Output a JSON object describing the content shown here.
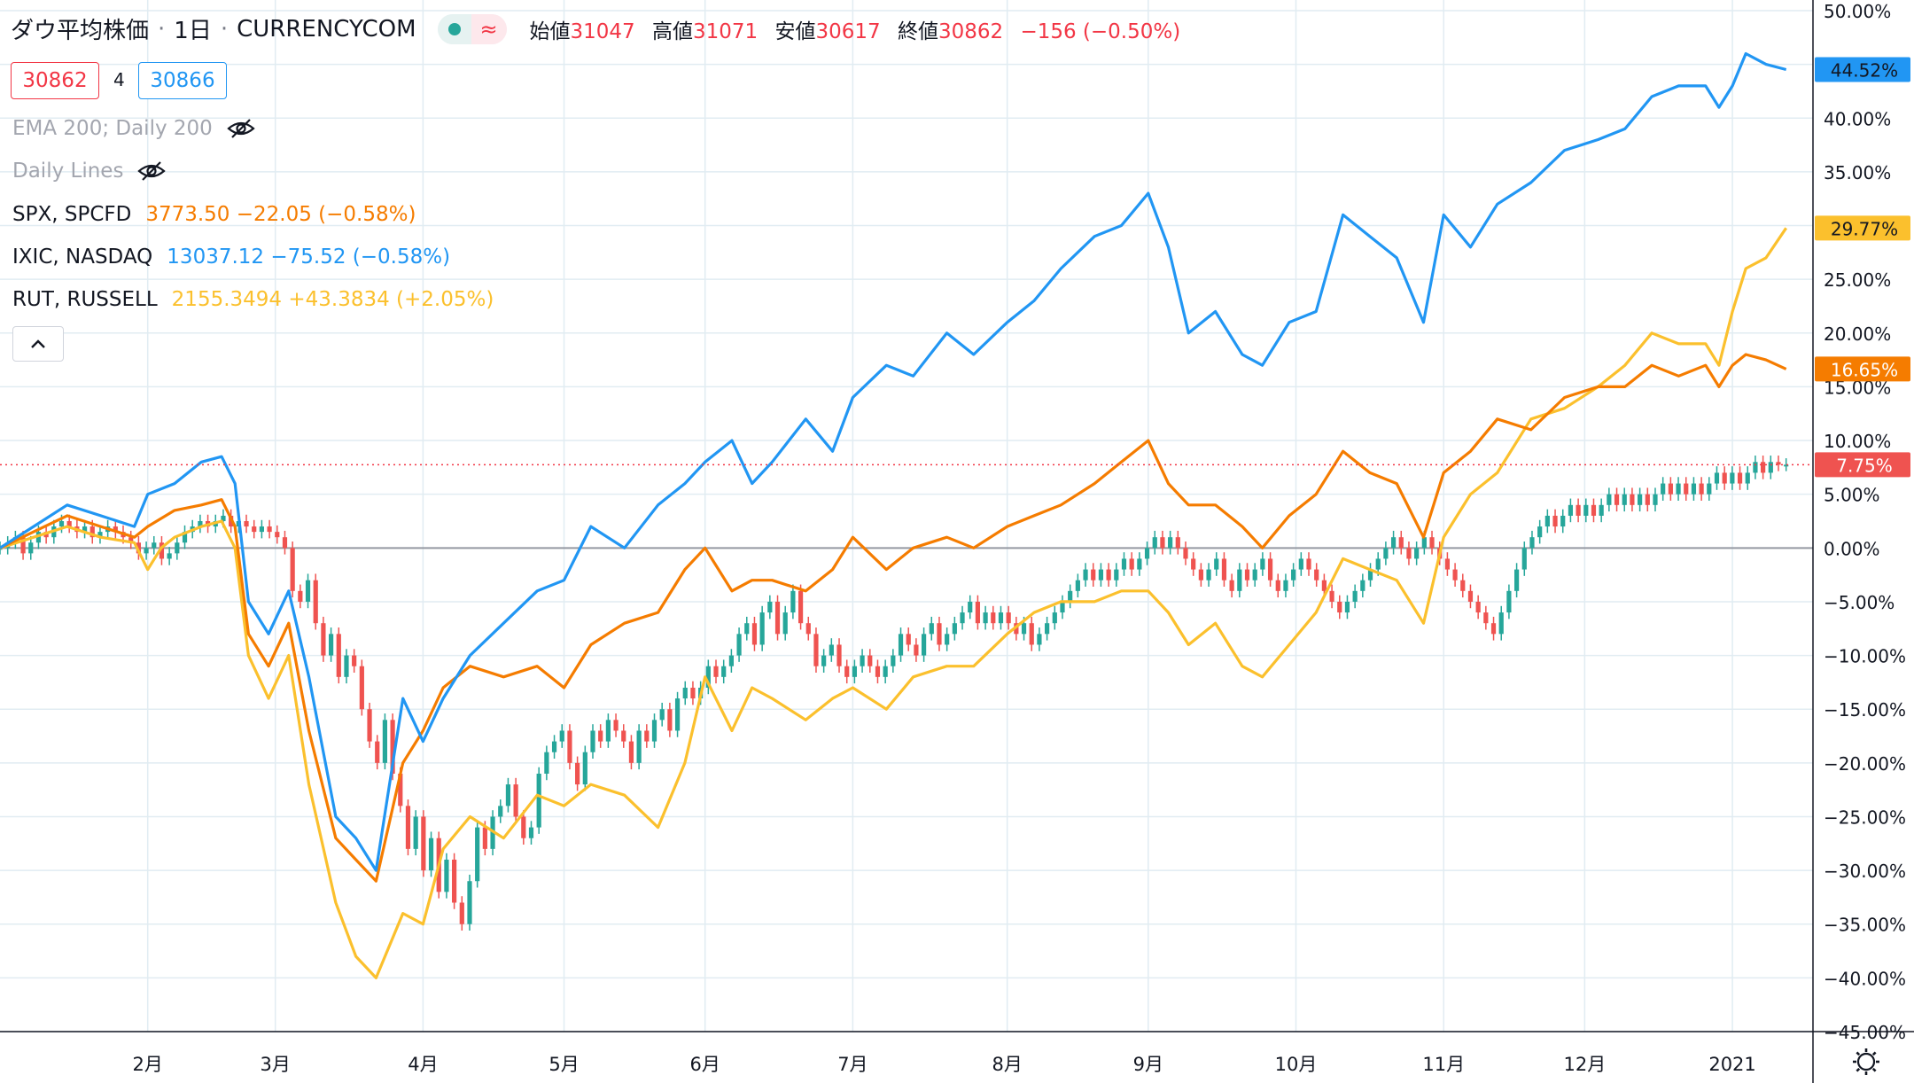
{
  "header": {
    "symbol_name": "ダウ平均株価",
    "interval": "1日",
    "source": "CURRENCYCOM",
    "pill_icon_left": "green-dot-icon",
    "pill_icon_right": "approx-icon",
    "ohlc": {
      "open_label": "始値",
      "open": "31047",
      "high_label": "高値",
      "high": "31071",
      "low_label": "安値",
      "low": "30617",
      "close_label": "終値",
      "close": "30862",
      "change": "−156 (−0.50%)"
    },
    "bid": "30862",
    "spread": "4",
    "ask": "30866"
  },
  "legend": {
    "ema": "EMA 200; Daily 200",
    "daily_lines": "Daily Lines",
    "spx": {
      "name": "SPX, SPCFD",
      "value": "3773.50 −22.05 (−0.58%)",
      "color": "#f57c00"
    },
    "ixic": {
      "name": "IXIC, NASDAQ",
      "value": "13037.12 −75.52 (−0.58%)",
      "color": "#2196f3"
    },
    "rut": {
      "name": "RUT, RUSSELL",
      "value": "2155.3494 +43.3834 (+2.05%)",
      "color": "#fbc02d"
    }
  },
  "colors": {
    "up": "#26a69a",
    "down": "#ef5350",
    "grid": "#e1ecf2",
    "zero_line": "#9598a1",
    "axis_text": "#131722",
    "price_line": "#f23645",
    "label_text_dark": "#131722"
  },
  "chart_data": {
    "type": "line",
    "ylim": [
      -45,
      50
    ],
    "y_ticks": [
      "50.00%",
      "45.00%",
      "40.00%",
      "35.00%",
      "30.00%",
      "25.00%",
      "20.00%",
      "15.00%",
      "10.00%",
      "5.00%",
      "0.00%",
      "−5.00%",
      "−10.00%",
      "−15.00%",
      "−20.00%",
      "−25.00%",
      "−30.00%",
      "−35.00%",
      "−40.00%",
      "−45.00%"
    ],
    "y_tick_values": [
      50,
      45,
      40,
      35,
      30,
      25,
      20,
      15,
      10,
      5,
      0,
      -5,
      -10,
      -15,
      -20,
      -25,
      -30,
      -35,
      -40,
      -45
    ],
    "x_ticks": [
      {
        "label": "2月",
        "t": 22
      },
      {
        "label": "3月",
        "t": 41
      },
      {
        "label": "4月",
        "t": 63
      },
      {
        "label": "5月",
        "t": 84
      },
      {
        "label": "6月",
        "t": 105
      },
      {
        "label": "7月",
        "t": 127
      },
      {
        "label": "8月",
        "t": 150
      },
      {
        "label": "9月",
        "t": 171
      },
      {
        "label": "10月",
        "t": 193
      },
      {
        "label": "11月",
        "t": 215
      },
      {
        "label": "12月",
        "t": 236
      },
      {
        "label": "2021",
        "t": 258
      }
    ],
    "t_range": [
      0,
      270
    ],
    "series": [
      {
        "name": "IXIC, NASDAQ",
        "color": "#2196f3",
        "last_label": "44.52%",
        "points": [
          [
            0,
            0
          ],
          [
            5,
            2
          ],
          [
            10,
            4
          ],
          [
            15,
            3
          ],
          [
            20,
            2
          ],
          [
            22,
            5
          ],
          [
            26,
            6
          ],
          [
            30,
            8
          ],
          [
            33,
            8.5
          ],
          [
            35,
            6
          ],
          [
            37,
            -5
          ],
          [
            40,
            -8
          ],
          [
            43,
            -4
          ],
          [
            46,
            -12
          ],
          [
            50,
            -25
          ],
          [
            53,
            -27
          ],
          [
            56,
            -30
          ],
          [
            60,
            -14
          ],
          [
            63,
            -18
          ],
          [
            66,
            -14
          ],
          [
            70,
            -10
          ],
          [
            75,
            -7
          ],
          [
            80,
            -4
          ],
          [
            84,
            -3
          ],
          [
            88,
            2
          ],
          [
            93,
            0
          ],
          [
            98,
            4
          ],
          [
            102,
            6
          ],
          [
            105,
            8
          ],
          [
            109,
            10
          ],
          [
            112,
            6
          ],
          [
            115,
            8
          ],
          [
            120,
            12
          ],
          [
            124,
            9
          ],
          [
            127,
            14
          ],
          [
            132,
            17
          ],
          [
            136,
            16
          ],
          [
            141,
            20
          ],
          [
            145,
            18
          ],
          [
            150,
            21
          ],
          [
            154,
            23
          ],
          [
            158,
            26
          ],
          [
            163,
            29
          ],
          [
            167,
            30
          ],
          [
            171,
            33
          ],
          [
            174,
            28
          ],
          [
            177,
            20
          ],
          [
            181,
            22
          ],
          [
            185,
            18
          ],
          [
            188,
            17
          ],
          [
            192,
            21
          ],
          [
            196,
            22
          ],
          [
            200,
            31
          ],
          [
            204,
            29
          ],
          [
            208,
            27
          ],
          [
            212,
            21
          ],
          [
            215,
            31
          ],
          [
            219,
            28
          ],
          [
            223,
            32
          ],
          [
            228,
            34
          ],
          [
            233,
            37
          ],
          [
            238,
            38
          ],
          [
            242,
            39
          ],
          [
            246,
            42
          ],
          [
            250,
            43
          ],
          [
            254,
            43
          ],
          [
            256,
            41
          ],
          [
            258,
            43
          ],
          [
            260,
            46
          ],
          [
            263,
            45
          ],
          [
            266,
            44.52
          ]
        ]
      },
      {
        "name": "SPX, SPCFD",
        "color": "#f57c00",
        "last_label": "16.65%",
        "points": [
          [
            0,
            0
          ],
          [
            5,
            1.5
          ],
          [
            10,
            3
          ],
          [
            15,
            2
          ],
          [
            20,
            1
          ],
          [
            22,
            2
          ],
          [
            26,
            3.5
          ],
          [
            30,
            4
          ],
          [
            33,
            4.5
          ],
          [
            35,
            2
          ],
          [
            37,
            -8
          ],
          [
            40,
            -11
          ],
          [
            43,
            -7
          ],
          [
            46,
            -17
          ],
          [
            50,
            -27
          ],
          [
            53,
            -29
          ],
          [
            56,
            -31
          ],
          [
            60,
            -20
          ],
          [
            63,
            -17
          ],
          [
            66,
            -13
          ],
          [
            70,
            -11
          ],
          [
            75,
            -12
          ],
          [
            80,
            -11
          ],
          [
            84,
            -13
          ],
          [
            88,
            -9
          ],
          [
            93,
            -7
          ],
          [
            98,
            -6
          ],
          [
            102,
            -2
          ],
          [
            105,
            0
          ],
          [
            109,
            -4
          ],
          [
            112,
            -3
          ],
          [
            115,
            -3
          ],
          [
            120,
            -4
          ],
          [
            124,
            -2
          ],
          [
            127,
            1
          ],
          [
            132,
            -2
          ],
          [
            136,
            0
          ],
          [
            141,
            1
          ],
          [
            145,
            0
          ],
          [
            150,
            2
          ],
          [
            154,
            3
          ],
          [
            158,
            4
          ],
          [
            163,
            6
          ],
          [
            167,
            8
          ],
          [
            171,
            10
          ],
          [
            174,
            6
          ],
          [
            177,
            4
          ],
          [
            181,
            4
          ],
          [
            185,
            2
          ],
          [
            188,
            0
          ],
          [
            192,
            3
          ],
          [
            196,
            5
          ],
          [
            200,
            9
          ],
          [
            204,
            7
          ],
          [
            208,
            6
          ],
          [
            212,
            1
          ],
          [
            215,
            7
          ],
          [
            219,
            9
          ],
          [
            223,
            12
          ],
          [
            228,
            11
          ],
          [
            233,
            14
          ],
          [
            238,
            15
          ],
          [
            242,
            15
          ],
          [
            246,
            17
          ],
          [
            250,
            16
          ],
          [
            254,
            17
          ],
          [
            256,
            15
          ],
          [
            258,
            17
          ],
          [
            260,
            18
          ],
          [
            263,
            17.5
          ],
          [
            266,
            16.65
          ]
        ]
      },
      {
        "name": "RUT, RUSSELL",
        "color": "#fbc02d",
        "last_label": "29.77%",
        "points": [
          [
            0,
            0
          ],
          [
            5,
            1
          ],
          [
            10,
            2
          ],
          [
            15,
            1
          ],
          [
            20,
            0.5
          ],
          [
            22,
            -2
          ],
          [
            24,
            0
          ],
          [
            26,
            1
          ],
          [
            30,
            2
          ],
          [
            33,
            2.5
          ],
          [
            35,
            0
          ],
          [
            37,
            -10
          ],
          [
            40,
            -14
          ],
          [
            43,
            -10
          ],
          [
            46,
            -22
          ],
          [
            50,
            -33
          ],
          [
            53,
            -38
          ],
          [
            56,
            -40
          ],
          [
            60,
            -34
          ],
          [
            63,
            -35
          ],
          [
            66,
            -28
          ],
          [
            70,
            -25
          ],
          [
            75,
            -27
          ],
          [
            80,
            -23
          ],
          [
            84,
            -24
          ],
          [
            88,
            -22
          ],
          [
            93,
            -23
          ],
          [
            98,
            -26
          ],
          [
            102,
            -20
          ],
          [
            105,
            -12
          ],
          [
            109,
            -17
          ],
          [
            112,
            -13
          ],
          [
            115,
            -14
          ],
          [
            120,
            -16
          ],
          [
            124,
            -14
          ],
          [
            127,
            -13
          ],
          [
            132,
            -15
          ],
          [
            136,
            -12
          ],
          [
            141,
            -11
          ],
          [
            145,
            -11
          ],
          [
            150,
            -8
          ],
          [
            154,
            -6
          ],
          [
            158,
            -5
          ],
          [
            163,
            -5
          ],
          [
            167,
            -4
          ],
          [
            171,
            -4
          ],
          [
            174,
            -6
          ],
          [
            177,
            -9
          ],
          [
            181,
            -7
          ],
          [
            185,
            -11
          ],
          [
            188,
            -12
          ],
          [
            192,
            -9
          ],
          [
            196,
            -6
          ],
          [
            200,
            -1
          ],
          [
            204,
            -2
          ],
          [
            208,
            -3
          ],
          [
            212,
            -7
          ],
          [
            215,
            1
          ],
          [
            219,
            5
          ],
          [
            223,
            7
          ],
          [
            228,
            12
          ],
          [
            233,
            13
          ],
          [
            238,
            15
          ],
          [
            242,
            17
          ],
          [
            246,
            20
          ],
          [
            250,
            19
          ],
          [
            254,
            19
          ],
          [
            256,
            17
          ],
          [
            258,
            22
          ],
          [
            260,
            26
          ],
          [
            263,
            27
          ],
          [
            266,
            29.77
          ]
        ]
      }
    ],
    "dji_candles": {
      "name": "ダウ平均株価",
      "last_label": "7.75%",
      "closes": [
        0,
        0.5,
        1,
        -0.5,
        0.5,
        1.5,
        1,
        2,
        2.5,
        2,
        1.5,
        2,
        1,
        1.5,
        2,
        1.5,
        1,
        0.5,
        -0.5,
        0,
        0.5,
        -1,
        -0.5,
        0.5,
        1.5,
        2,
        2.5,
        2,
        2.5,
        3,
        2,
        2.5,
        2,
        1.5,
        2,
        1.5,
        1,
        0,
        -4,
        -5,
        -3,
        -7,
        -10,
        -8,
        -12,
        -10,
        -11,
        -15,
        -18,
        -20,
        -16,
        -21,
        -24,
        -28,
        -25,
        -30,
        -27,
        -32,
        -29,
        -33,
        -35,
        -31,
        -26,
        -28,
        -25,
        -24,
        -22,
        -25,
        -27,
        -26,
        -21,
        -19,
        -18,
        -17,
        -20,
        -22,
        -19,
        -17,
        -18,
        -16,
        -17,
        -18,
        -20,
        -17,
        -18,
        -16,
        -15,
        -17,
        -14,
        -13,
        -14,
        -13,
        -11,
        -12,
        -11,
        -10,
        -8,
        -7,
        -9,
        -6,
        -5,
        -8,
        -6,
        -4,
        -7,
        -8,
        -11,
        -10,
        -9,
        -11,
        -12,
        -11,
        -10,
        -11,
        -12,
        -11,
        -10,
        -8,
        -9,
        -10,
        -8,
        -7,
        -9,
        -8,
        -7,
        -6,
        -5,
        -7,
        -6,
        -7,
        -6,
        -7,
        -8,
        -7,
        -9,
        -8,
        -7,
        -6,
        -5,
        -4,
        -3,
        -2,
        -3,
        -2,
        -3,
        -2,
        -1,
        -2,
        -1,
        0,
        1,
        0,
        1,
        0,
        -1,
        -2,
        -3,
        -2,
        -1,
        -3,
        -4,
        -2,
        -3,
        -2,
        -1,
        -3,
        -4,
        -3,
        -2,
        -1,
        -2,
        -3,
        -4,
        -5,
        -6,
        -5,
        -4,
        -3,
        -2,
        -1,
        0,
        1,
        0,
        -1,
        0,
        1,
        0,
        -1,
        -2,
        -3,
        -4,
        -5,
        -6,
        -7,
        -8,
        -6,
        -4,
        -2,
        0,
        1,
        2,
        3,
        2,
        3,
        4,
        3,
        4,
        3,
        4,
        5,
        4,
        5,
        4,
        5,
        4,
        5,
        6,
        5,
        6,
        5,
        6,
        5,
        6,
        7,
        6,
        7,
        6,
        7,
        8,
        7,
        8,
        7.75,
        7.75
      ]
    }
  }
}
